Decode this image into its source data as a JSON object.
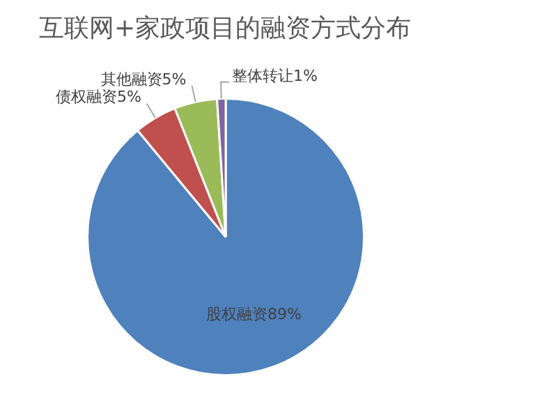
{
  "chart_data": {
    "type": "pie",
    "title": "互联网+家政项目的融资方式分布",
    "categories": [
      "股权融资",
      "债权融资",
      "其他融资",
      "整体转让"
    ],
    "values": [
      89,
      5,
      5,
      1
    ],
    "value_labels": [
      "89%",
      "5%",
      "5%",
      "1%"
    ],
    "colors": [
      "#4f81bd",
      "#c0504d",
      "#9bbb59",
      "#8064a2"
    ],
    "legend": false
  }
}
